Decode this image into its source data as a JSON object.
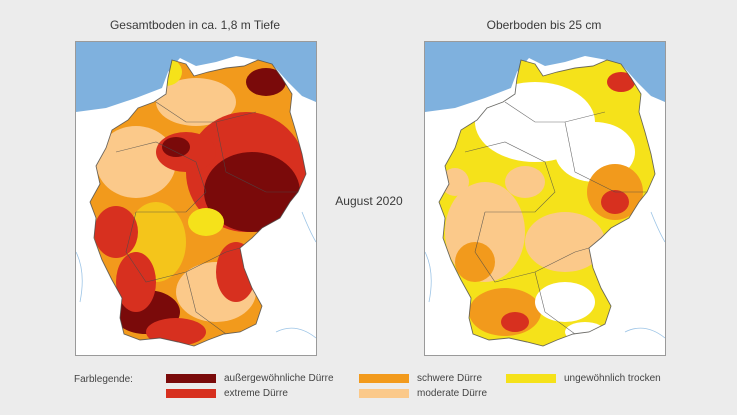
{
  "maps": {
    "left": {
      "title": "Gesamtboden in ca. 1,8 m Tiefe"
    },
    "right": {
      "title": "Oberboden bis 25 cm"
    },
    "period": "August 2020"
  },
  "legend": {
    "label": "Farblegende:",
    "items": [
      {
        "label": "außergewöhnliche Dürre",
        "color": "#7a0a0a"
      },
      {
        "label": "extreme Dürre",
        "color": "#d7301f"
      },
      {
        "label": "schwere Dürre",
        "color": "#f29a1c"
      },
      {
        "label": "moderate Dürre",
        "color": "#fbc98a"
      },
      {
        "label": "ungewöhnlich trocken",
        "color": "#f5e21a"
      }
    ]
  },
  "colors": {
    "sea": "#7fb1de",
    "land_outside": "#ffffff",
    "border": "#3a3a3a"
  }
}
